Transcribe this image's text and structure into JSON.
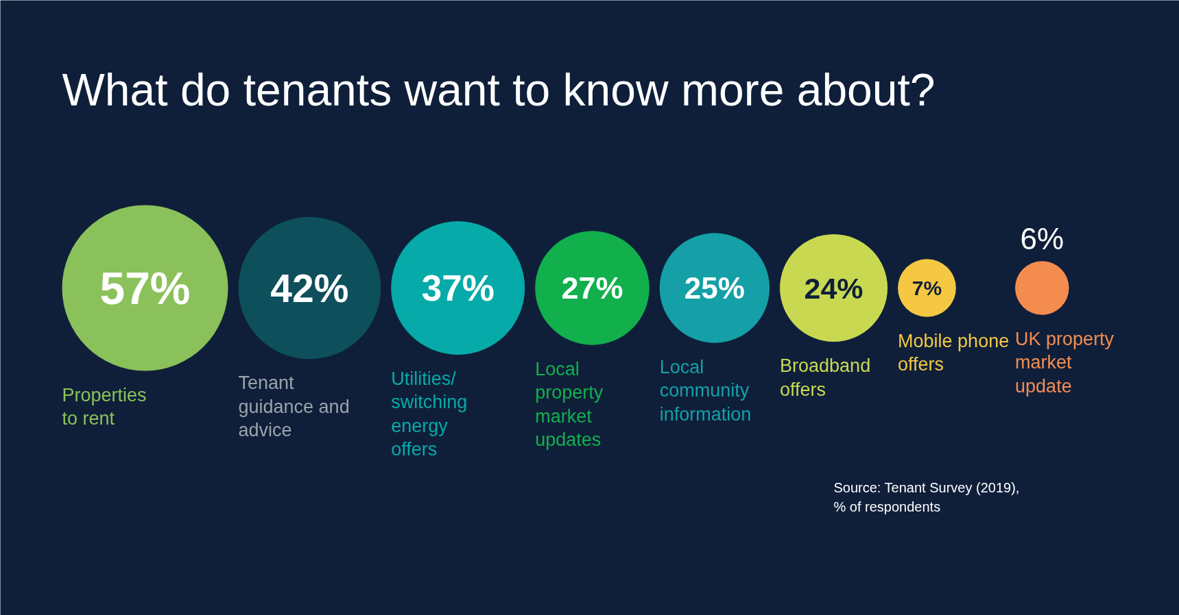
{
  "chart_data": {
    "type": "other",
    "title": "What do tenants want to know more about?",
    "categories": [
      "Properties to rent",
      "Tenant guidance and advice",
      "Utilities/ switching energy offers",
      "Local property market updates",
      "Local community information",
      "Broadband offers",
      "Mobile phone offers",
      "UK property market update"
    ],
    "values": [
      57,
      42,
      37,
      27,
      25,
      24,
      7,
      6
    ],
    "value_labels": [
      "57%",
      "42%",
      "37%",
      "27%",
      "25%",
      "24%",
      "7%",
      "6%"
    ],
    "colors": [
      "#8bc15a",
      "#0e4f5c",
      "#06aaa8",
      "#12b04d",
      "#14a0a6",
      "#c8d951",
      "#f4c842",
      "#f48c50"
    ],
    "annotations": [
      "Source: Tenant Survey (2019), % of respondents"
    ]
  }
}
